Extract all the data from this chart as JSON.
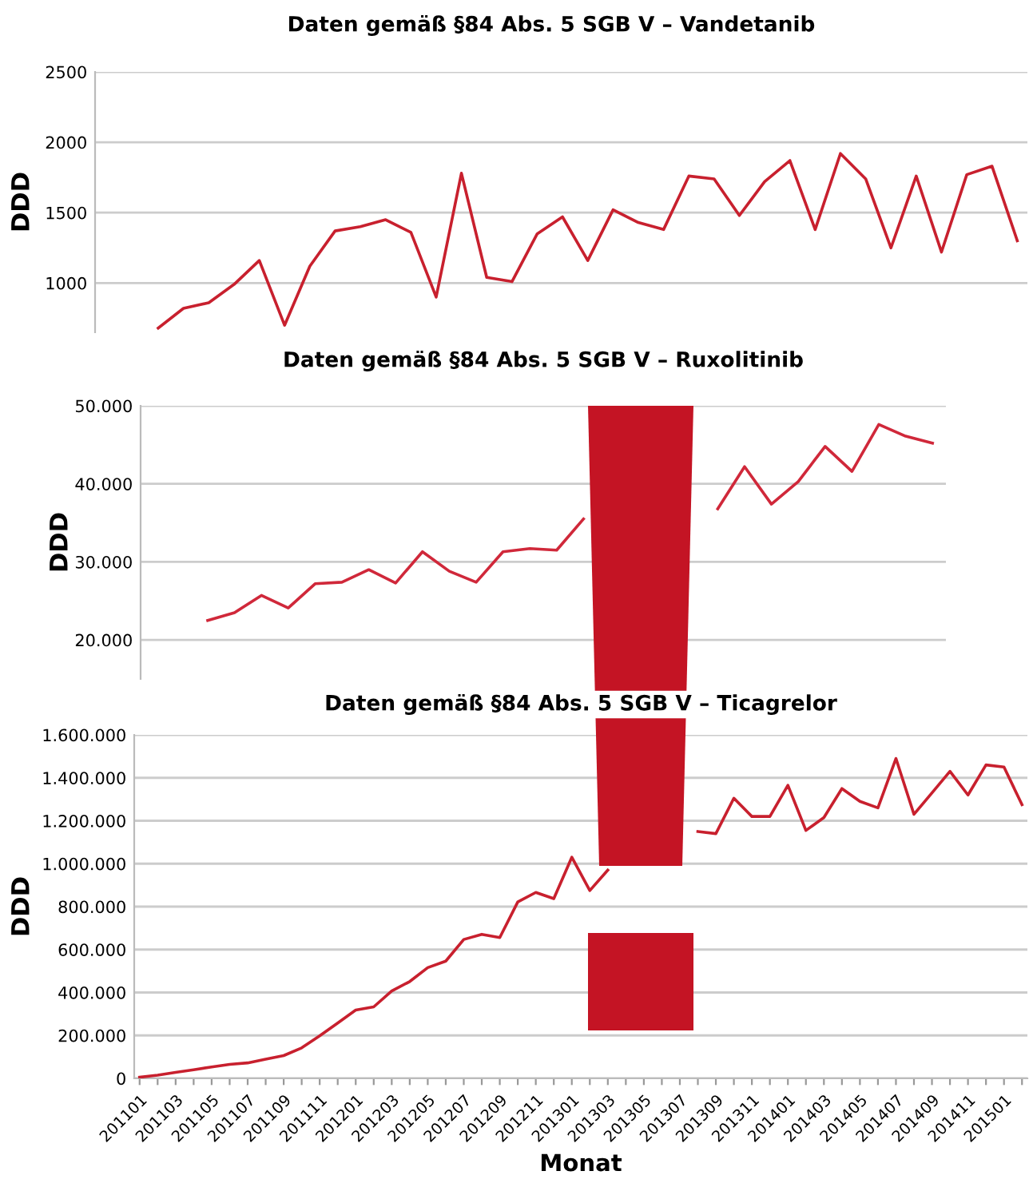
{
  "chart_data": [
    {
      "type": "line",
      "title": "Daten gemäß §84 Abs. 5 SGB V – Vandetanib",
      "ylabel": "DDD",
      "tick_labels": "y",
      "grid": "y",
      "ylim": [
        650,
        2500
      ],
      "yticks": [
        1000,
        1500,
        2000,
        2500
      ],
      "categories": [
        null,
        null,
        null,
        null,
        null,
        null,
        null,
        null,
        null,
        null,
        null,
        null,
        null,
        null,
        null,
        null,
        null,
        null,
        null,
        null,
        null,
        null,
        null,
        null,
        null,
        null,
        null,
        null,
        null,
        null,
        null,
        null,
        null,
        null,
        null,
        null,
        null
      ],
      "series": [
        {
          "color": "#c8202e",
          "values": [
            null,
            null,
            680,
            820,
            860,
            990,
            1160,
            700,
            1120,
            1370,
            1400,
            1450,
            1360,
            900,
            1780,
            1040,
            1010,
            1350,
            1470,
            1160,
            1520,
            1430,
            1380,
            1760,
            1740,
            1480,
            1720,
            1870,
            1380,
            1920,
            1740,
            1250,
            1760,
            1220,
            1770,
            1830,
            1300
          ]
        }
      ]
    },
    {
      "type": "line",
      "title": "Daten gemäß §84 Abs. 5 SGB V – Ruxolitinib",
      "ylabel": "DDD",
      "tick_labels": "y",
      "grid": "y",
      "ylim": [
        15000,
        50000
      ],
      "yticks": [
        {
          "value": 20000,
          "label": "20.000"
        },
        {
          "value": 30000,
          "label": "30.000"
        },
        {
          "value": 40000,
          "label": "40.000"
        },
        {
          "value": 50000,
          "label": "50.000"
        }
      ],
      "categories": [
        null,
        null,
        null,
        null,
        null,
        null,
        null,
        null,
        null,
        null,
        null,
        null,
        null,
        null,
        null,
        null,
        null,
        null,
        null,
        null,
        null,
        null,
        null,
        null,
        null,
        null,
        null,
        null,
        null,
        null
      ],
      "series": [
        {
          "color": "#d0283a",
          "values": [
            null,
            null,
            22500,
            23500,
            25700,
            24100,
            27200,
            27400,
            29000,
            27300,
            31300,
            28800,
            27400,
            31300,
            31700,
            31500,
            35500,
            null,
            null,
            null,
            null,
            36800,
            42200,
            37400,
            40300,
            44800,
            41600,
            47600,
            46100,
            45200
          ]
        }
      ]
    },
    {
      "type": "line",
      "title": "Daten gemäß §84 Abs. 5 SGB V – Ticagrelor",
      "xlabel": "Monat",
      "ylabel": "DDD",
      "grid": "y",
      "ylim": [
        0,
        1600000
      ],
      "yticks": [
        0,
        {
          "value": 200000,
          "label": "200.000"
        },
        {
          "value": 400000,
          "label": "400.000"
        },
        {
          "value": 600000,
          "label": "600.000"
        },
        {
          "value": 800000,
          "label": "800.000"
        },
        {
          "value": 1000000,
          "label": "1.000.000"
        },
        {
          "value": 1200000,
          "label": "1.200.000"
        },
        {
          "value": 1400000,
          "label": "1.400.000"
        },
        {
          "value": 1600000,
          "label": "1.600.000"
        }
      ],
      "categories": [
        "201101",
        null,
        "201103",
        null,
        "201105",
        null,
        "201107",
        null,
        "201109",
        null,
        "201111",
        null,
        "201201",
        null,
        "201203",
        null,
        "201205",
        null,
        "201207",
        null,
        "201209",
        null,
        "201211",
        null,
        "201301",
        null,
        "201303",
        null,
        "201305",
        null,
        "201307",
        null,
        "201309",
        null,
        "201311",
        null,
        "201401",
        null,
        "201403",
        null,
        "201405",
        null,
        "201407",
        null,
        "201409",
        null,
        "201411",
        null,
        "201501",
        null
      ],
      "series": [
        {
          "color": "#c8202e",
          "values": [
            5000,
            15000,
            28000,
            40000,
            53000,
            65000,
            72000,
            89000,
            106000,
            142000,
            198000,
            258000,
            318000,
            333000,
            407000,
            451000,
            516000,
            546000,
            647000,
            671000,
            656000,
            822000,
            866000,
            837000,
            1030000,
            875000,
            970000,
            null,
            null,
            null,
            null,
            1150000,
            1140000,
            1305000,
            1220000,
            1220000,
            1365000,
            1155000,
            1215000,
            1350000,
            1290000,
            1260000,
            1490000,
            1230000,
            1330000,
            1430000,
            1320000,
            1460000,
            1450000,
            1275000
          ]
        }
      ]
    }
  ]
}
